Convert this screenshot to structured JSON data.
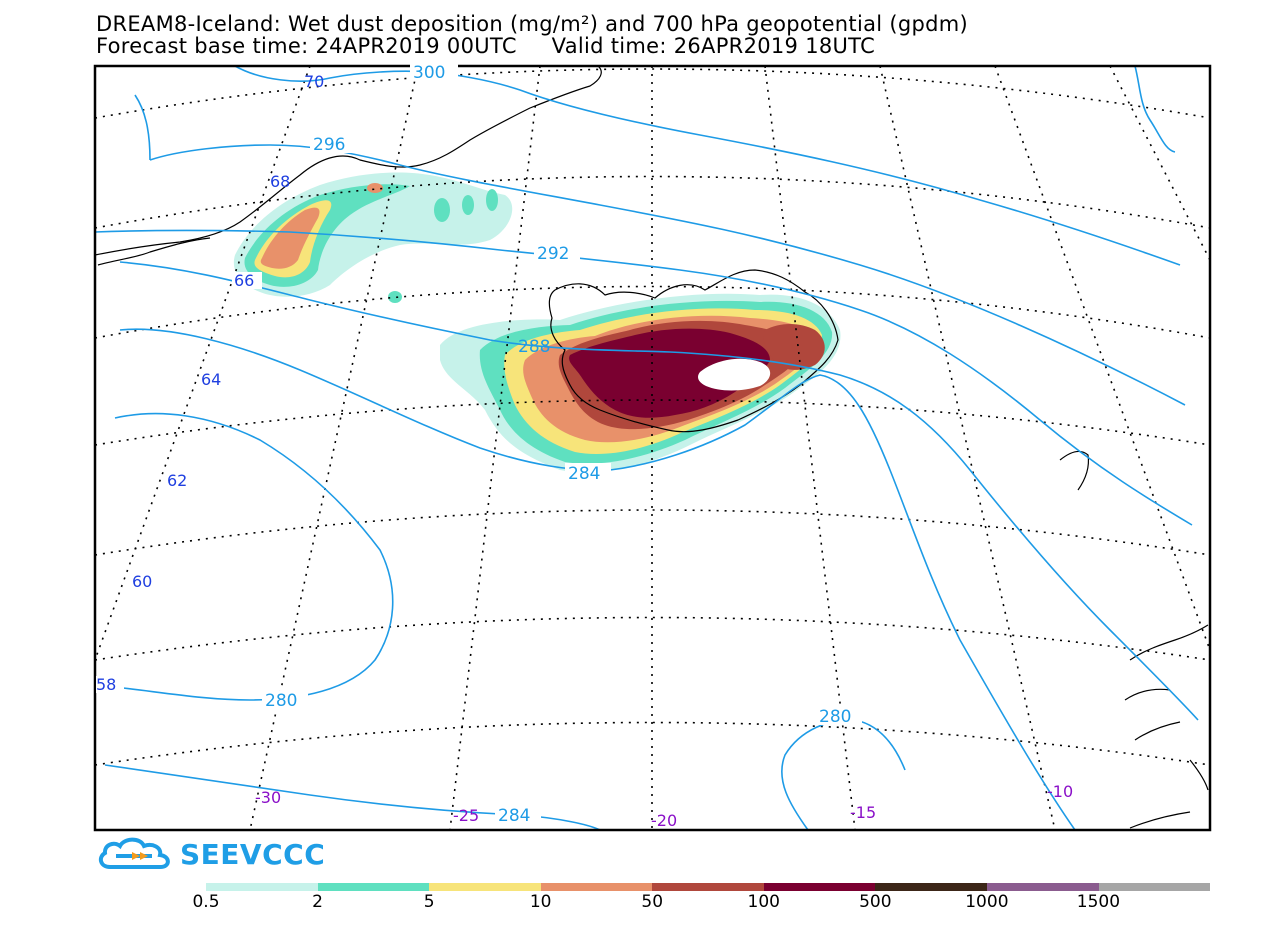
{
  "title": {
    "line1": "DREAM8-Iceland: Wet dust deposition (mg/m²) and 700 hPa geopotential (gpdm)",
    "line2": "Forecast base time: 24APR2019 00UTC     Valid time: 26APR2019 18UTC"
  },
  "logo": {
    "text": "SEEVCCC",
    "icon": "cloud-icon"
  },
  "colorbar": {
    "colors": [
      "#c6f2ea",
      "#5fe0c0",
      "#f7e47a",
      "#e8916a",
      "#b0473c",
      "#7a0030",
      "#3c2618",
      "#8b5c8f",
      "#a6a6a6"
    ],
    "labels": [
      "0.5",
      "2",
      "5",
      "10",
      "50",
      "100",
      "500",
      "1000",
      "1500"
    ]
  },
  "map": {
    "geopotential_contours": [
      "300",
      "296",
      "292",
      "288",
      "284",
      "280",
      "280",
      "284"
    ],
    "latitude_labels": [
      "70",
      "68",
      "66",
      "64",
      "62",
      "60",
      "58"
    ],
    "longitude_labels": [
      "-30",
      "-25",
      "-20",
      "-15",
      "-10"
    ],
    "colors": {
      "contour": "#1e9be6",
      "lat_label": "#1f3fe0",
      "lon_label": "#8a10c8",
      "grid": "#000000",
      "coast": "#000000"
    }
  }
}
